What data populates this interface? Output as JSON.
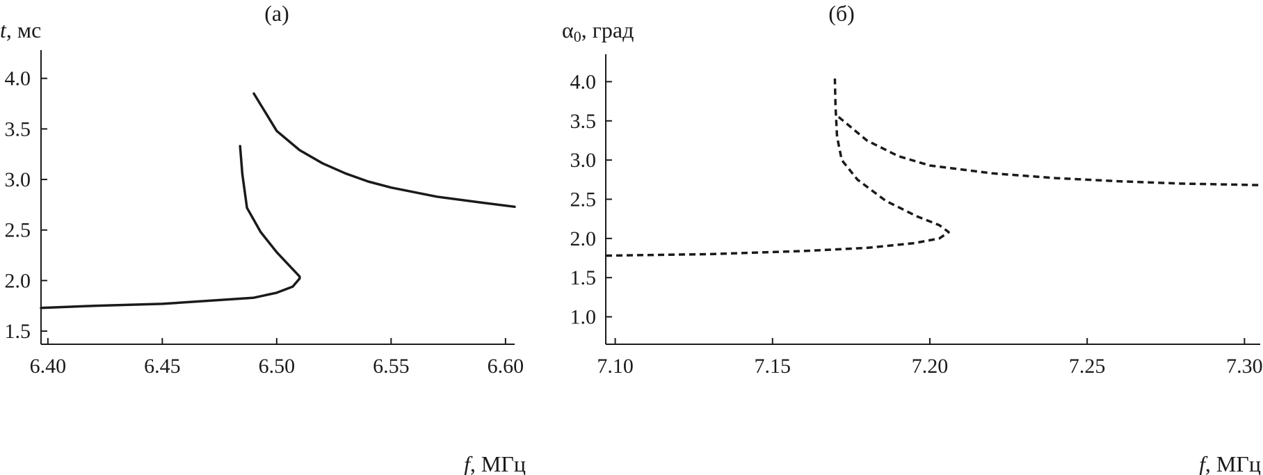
{
  "chart_data": [
    {
      "type": "line",
      "panel_label": "(а)",
      "ylabel_var": "t",
      "ylabel_rest": ", мс",
      "xlabel_var": "f",
      "xlabel_rest": ", МГц",
      "xlim": [
        6.397,
        6.604
      ],
      "ylim": [
        1.37,
        4.28
      ],
      "x_ticks": [
        6.4,
        6.45,
        6.5,
        6.55,
        6.6
      ],
      "x_tick_labels": [
        "6.40",
        "6.45",
        "6.50",
        "6.55",
        "6.60"
      ],
      "y_ticks": [
        1.5,
        2.0,
        2.5,
        3.0,
        3.5,
        4.0
      ],
      "y_tick_labels": [
        "1.5",
        "2.0",
        "2.5",
        "3.0",
        "3.5",
        "4.0"
      ],
      "grid": false,
      "series": [
        {
          "style": "solid",
          "color": "#1a1a1a",
          "x": [
            6.397,
            6.42,
            6.45,
            6.47,
            6.49,
            6.5,
            6.507,
            6.51,
            6.51,
            6.5,
            6.493,
            6.487,
            6.485,
            6.484
          ],
          "y": [
            1.73,
            1.75,
            1.77,
            1.8,
            1.83,
            1.88,
            1.94,
            2.02,
            2.04,
            2.28,
            2.48,
            2.72,
            3.05,
            3.33
          ]
        },
        {
          "style": "solid",
          "color": "#1a1a1a",
          "x": [
            6.49,
            6.5,
            6.51,
            6.52,
            6.53,
            6.54,
            6.55,
            6.57,
            6.59,
            6.604
          ],
          "y": [
            3.85,
            3.48,
            3.29,
            3.16,
            3.06,
            2.98,
            2.92,
            2.83,
            2.77,
            2.73
          ]
        }
      ]
    },
    {
      "type": "line",
      "panel_label": "(б)",
      "ylabel_var": "α",
      "ylabel_sub": "0",
      "ylabel_rest": ", град",
      "xlabel_var": "f",
      "xlabel_rest": ", МГц",
      "xlim": [
        7.097,
        7.305
      ],
      "ylim": [
        0.65,
        4.35
      ],
      "x_ticks": [
        7.1,
        7.15,
        7.2,
        7.25,
        7.3
      ],
      "x_tick_labels": [
        "7.10",
        "7.15",
        "7.20",
        "7.25",
        "7.30"
      ],
      "y_ticks": [
        1.0,
        1.5,
        2.0,
        2.5,
        3.0,
        3.5,
        4.0
      ],
      "y_tick_labels": [
        "1.0",
        "1.5",
        "2.0",
        "2.5",
        "3.0",
        "3.5",
        "4.0"
      ],
      "grid": false,
      "series": [
        {
          "style": "dashed",
          "color": "#1a1a1a",
          "x": [
            7.097,
            7.13,
            7.16,
            7.18,
            7.195,
            7.203,
            7.206,
            7.203,
            7.196,
            7.186,
            7.177,
            7.172,
            7.1705,
            7.17,
            7.1698
          ],
          "y": [
            1.78,
            1.8,
            1.84,
            1.88,
            1.94,
            2.0,
            2.08,
            2.17,
            2.28,
            2.48,
            2.75,
            3.0,
            3.3,
            3.7,
            4.04
          ]
        },
        {
          "style": "dashed",
          "color": "#1a1a1a",
          "x": [
            7.171,
            7.18,
            7.19,
            7.2,
            7.22,
            7.24,
            7.26,
            7.28,
            7.305
          ],
          "y": [
            3.55,
            3.25,
            3.05,
            2.93,
            2.83,
            2.77,
            2.73,
            2.7,
            2.68
          ]
        }
      ]
    }
  ]
}
